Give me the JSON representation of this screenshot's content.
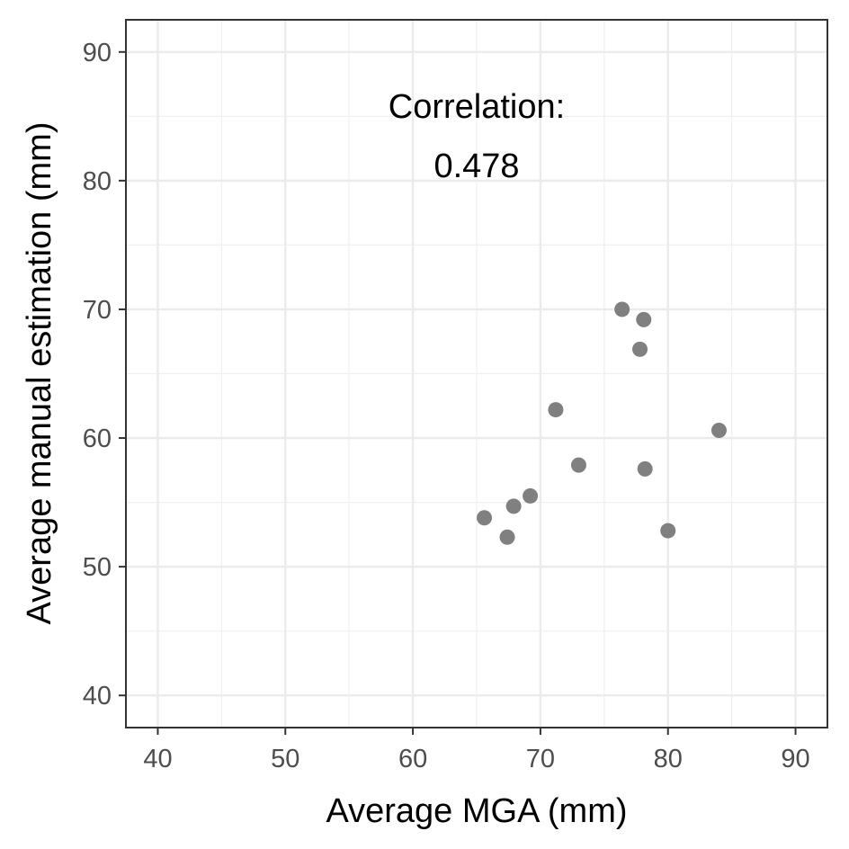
{
  "chart_data": {
    "type": "scatter",
    "xlabel": "Average MGA (mm)",
    "ylabel": "Average manual estimation (mm)",
    "xlim": [
      37.5,
      92.5
    ],
    "ylim": [
      37.5,
      92.5
    ],
    "x_ticks": [
      40,
      50,
      60,
      70,
      80,
      90
    ],
    "y_ticks": [
      40,
      50,
      60,
      70,
      80,
      90
    ],
    "x_tick_labels": [
      "40",
      "50",
      "60",
      "70",
      "80",
      "90"
    ],
    "y_tick_labels": [
      "40",
      "50",
      "60",
      "70",
      "80",
      "90"
    ],
    "grid": true,
    "point_color": "#808080",
    "points": [
      {
        "x": 65.6,
        "y": 53.8
      },
      {
        "x": 67.4,
        "y": 52.3
      },
      {
        "x": 67.9,
        "y": 54.7
      },
      {
        "x": 69.2,
        "y": 55.5
      },
      {
        "x": 71.2,
        "y": 62.2
      },
      {
        "x": 73.0,
        "y": 57.9
      },
      {
        "x": 76.4,
        "y": 70.0
      },
      {
        "x": 77.8,
        "y": 66.9
      },
      {
        "x": 78.1,
        "y": 69.2
      },
      {
        "x": 78.2,
        "y": 57.6
      },
      {
        "x": 80.0,
        "y": 52.8
      },
      {
        "x": 84.0,
        "y": 60.6
      }
    ],
    "annotation": {
      "line1": "Correlation:",
      "line2": "0.478",
      "x": 65,
      "y": 83.5
    }
  }
}
